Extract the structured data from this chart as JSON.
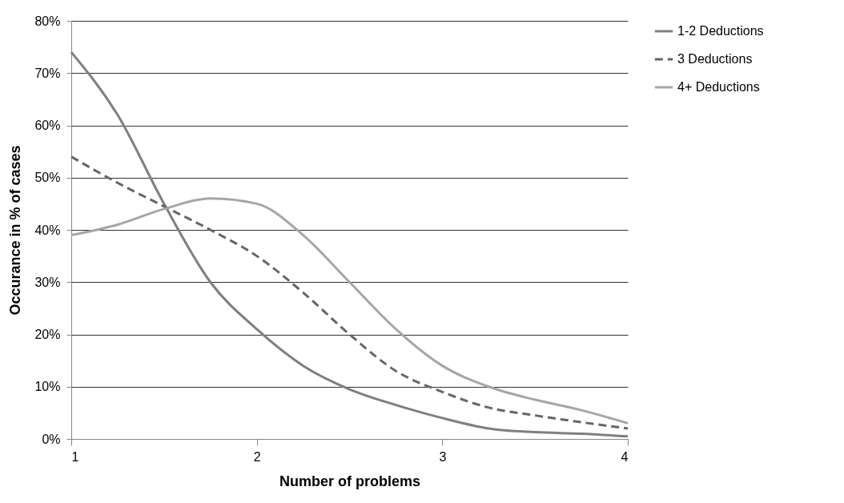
{
  "chart_data": {
    "type": "line",
    "xlabel": "Number of problems",
    "ylabel": "Occurance in % of cases",
    "x": [
      1,
      1.25,
      1.5,
      1.75,
      2,
      2.25,
      2.5,
      2.75,
      3,
      3.25,
      3.5,
      3.75,
      4
    ],
    "series": [
      {
        "name": "1-2 Deductions",
        "color": "#7f7f7f",
        "line_style": "solid",
        "values": [
          74,
          62,
          45,
          30,
          21,
          14,
          9.5,
          6.5,
          4,
          2,
          1.3,
          1,
          0.5
        ]
      },
      {
        "name": "3 Deductions",
        "color": "#666666",
        "line_style": "dashed",
        "values": [
          54,
          49,
          44.5,
          40,
          35,
          28,
          20,
          13,
          9,
          6,
          4.5,
          3.2,
          2
        ]
      },
      {
        "name": "4+ Deductions",
        "color": "#a6a6a6",
        "line_style": "solid",
        "values": [
          39,
          41,
          44,
          46,
          45,
          39,
          30,
          21,
          14,
          10,
          7.5,
          5.5,
          3
        ]
      }
    ],
    "xlim": [
      1,
      4
    ],
    "xticks": [
      1,
      2,
      3,
      4
    ],
    "ylim": [
      0,
      80
    ],
    "yticks": [
      {
        "value": 0,
        "label": "0%"
      },
      {
        "value": 10,
        "label": "10%"
      },
      {
        "value": 20,
        "label": "20%"
      },
      {
        "value": 30,
        "label": "30%"
      },
      {
        "value": 40,
        "label": "40%"
      },
      {
        "value": 50,
        "label": "50%"
      },
      {
        "value": 60,
        "label": "60%"
      },
      {
        "value": 70,
        "label": "70%"
      },
      {
        "value": 80,
        "label": "80%"
      }
    ],
    "grid": "y",
    "legend": "right",
    "marker": "none"
  }
}
